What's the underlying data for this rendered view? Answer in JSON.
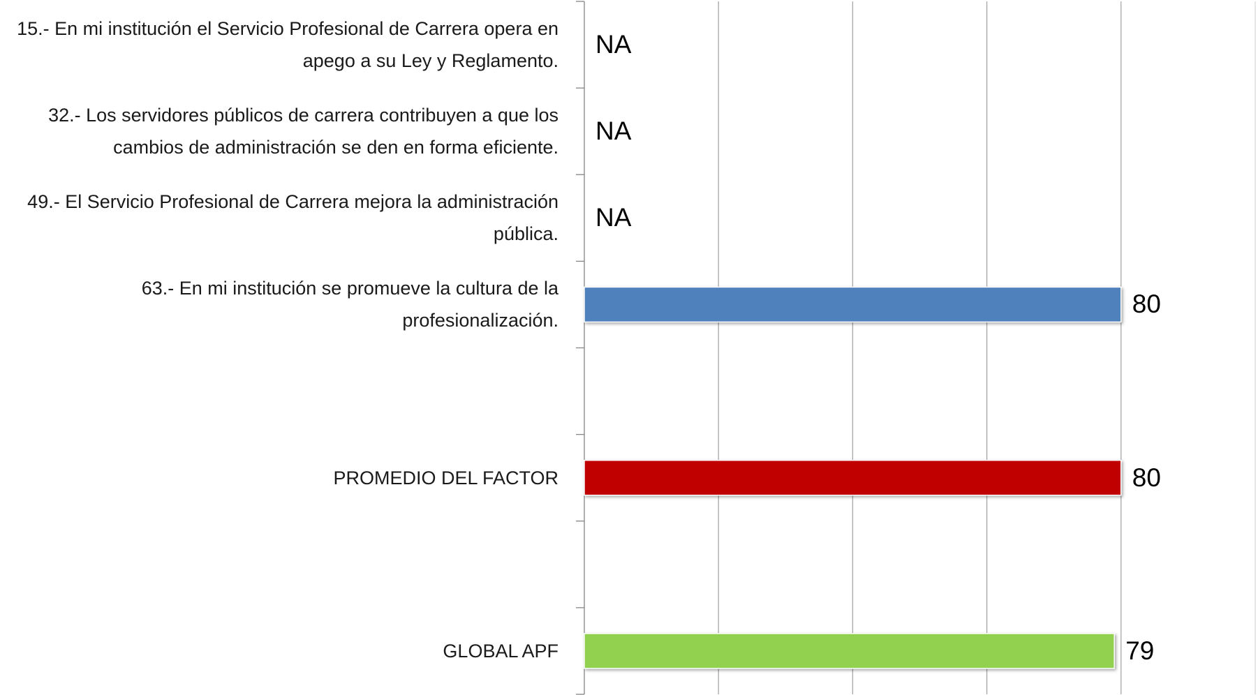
{
  "chart_data": {
    "type": "barh",
    "categories": [
      "15.- En mi institución el Servicio Profesional de Carrera opera en apego a su Ley y Reglamento.",
      "32.- Los servidores públicos de carrera contribuyen a que los cambios de administración se den en forma eficiente.",
      "49.- El Servicio Profesional de Carrera mejora la administración pública.",
      "63.- En mi institución se promueve la cultura de la profesionalización.",
      null,
      "PROMEDIO DEL FACTOR",
      null,
      "GLOBAL APF"
    ],
    "values": [
      null,
      null,
      null,
      80,
      null,
      80,
      null,
      79
    ],
    "value_labels": [
      "NA",
      "NA",
      "NA",
      "80",
      null,
      "80",
      null,
      "79"
    ],
    "colors": [
      null,
      null,
      null,
      "#4f81bd",
      null,
      "#c00000",
      null,
      "#92d050"
    ],
    "xlim": [
      0,
      100
    ],
    "xticks": [
      0,
      20,
      40,
      60,
      80,
      100
    ],
    "grid": true
  }
}
